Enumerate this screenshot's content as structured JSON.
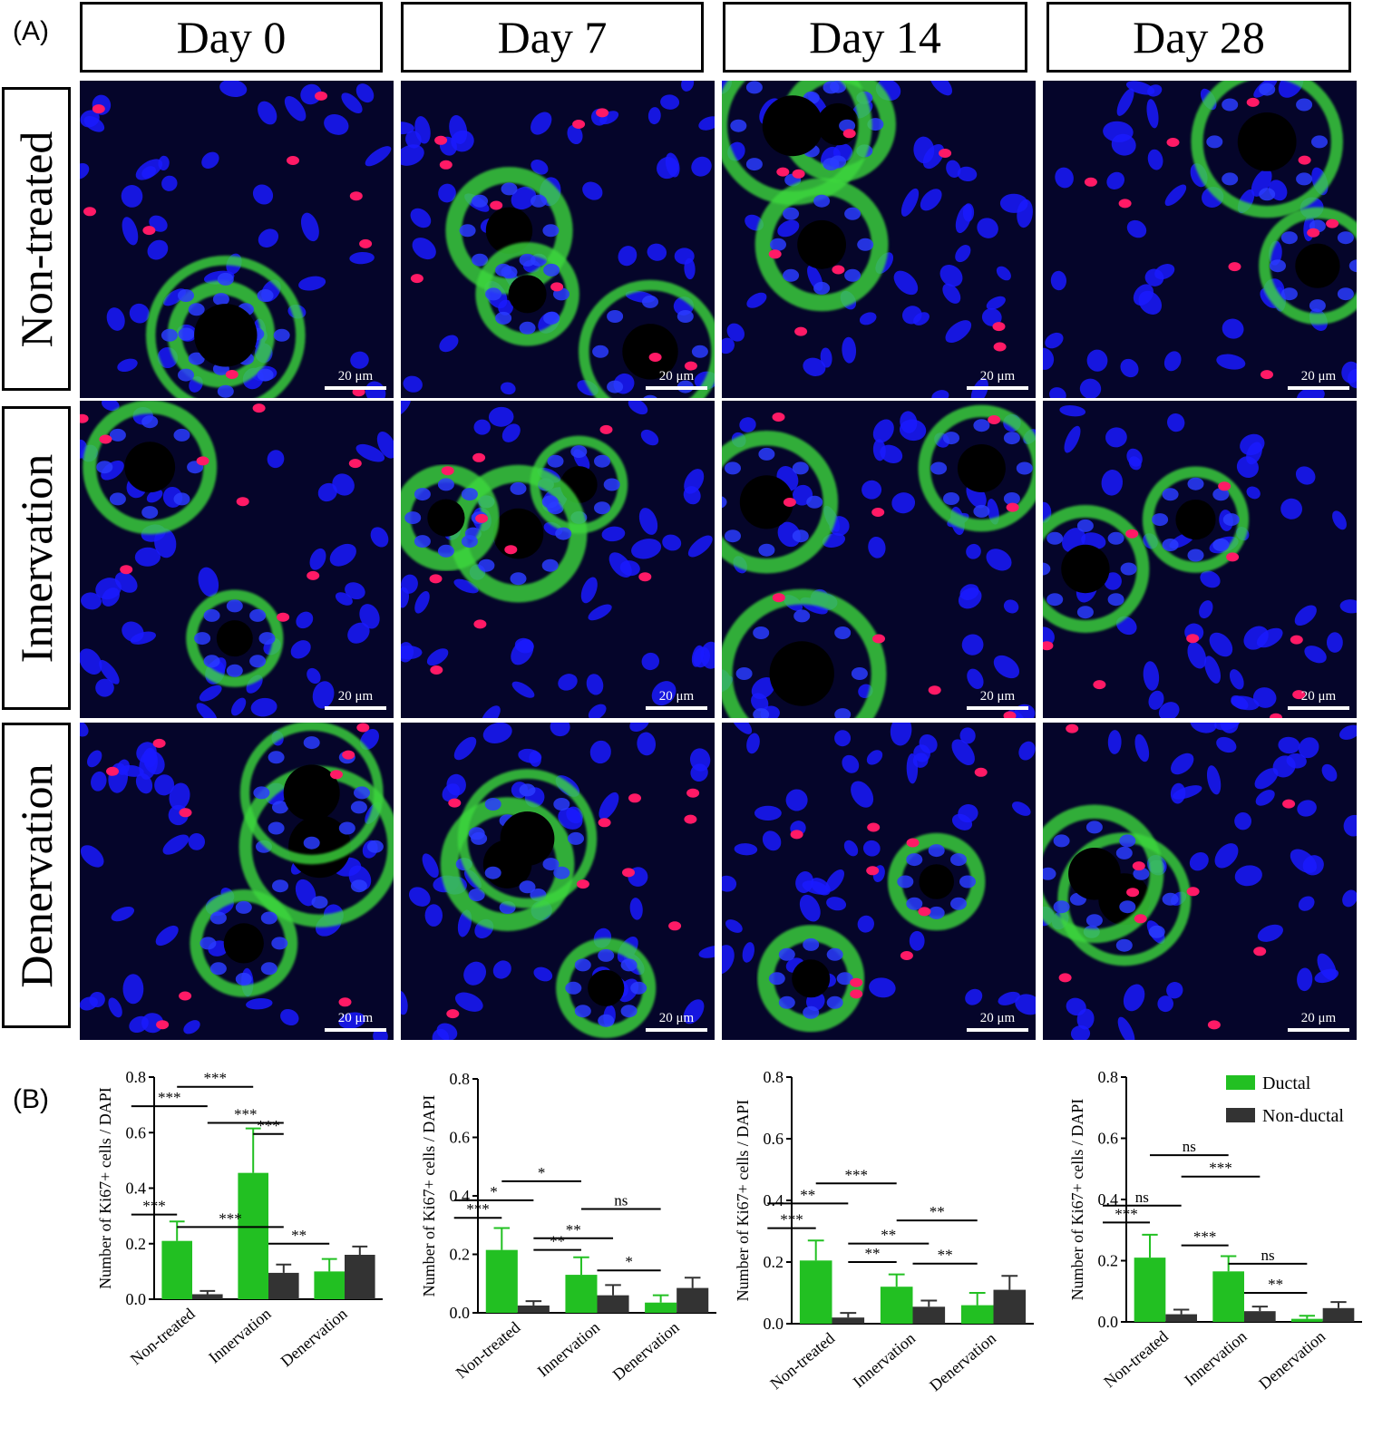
{
  "panels": {
    "a": "(A)",
    "b": "(B)"
  },
  "columns": [
    "Day 0",
    "Day 7",
    "Day 14",
    "Day 28"
  ],
  "rows": [
    "Non-treated",
    "Innervation",
    "Denervation"
  ],
  "scale_bar": "20 μm",
  "colors": {
    "ductal": "#22c022",
    "non_ductal": "#333333",
    "nuclei": "#1a1aff",
    "ki67": "#ff1a66",
    "membrane": "#40dd40"
  },
  "chart_data": [
    {
      "type": "bar",
      "ylabel": "Number of  Ki67+ cells / DAPI",
      "ylim": [
        0,
        0.8
      ],
      "yticks": [
        "0.0",
        "0.2",
        "0.4",
        "0.6",
        "0.8"
      ],
      "categories": [
        "Non-treated",
        "Innervation",
        "Denervation"
      ],
      "series": [
        {
          "name": "Ductal",
          "values": [
            0.21,
            0.455,
            0.1
          ],
          "errors": [
            0.07,
            0.16,
            0.045
          ]
        },
        {
          "name": "Non-ductal",
          "values": [
            0.018,
            0.095,
            0.16
          ],
          "errors": [
            0.012,
            0.03,
            0.03
          ]
        }
      ],
      "brackets": [
        {
          "x1": 0,
          "x2": 1,
          "label": "***",
          "y": 0.765
        },
        {
          "x1": -0.5,
          "x2": 0.5,
          "label": "***",
          "y": 0.695
        },
        {
          "x1": 0.5,
          "x2": 1.5,
          "label": "***",
          "y": 0.635
        },
        {
          "x1": 1,
          "x2": 1.5,
          "label": "***",
          "y": 0.595
        },
        {
          "x1": -0.5,
          "x2": 0,
          "label": "***",
          "y": 0.305
        },
        {
          "x1": 0,
          "x2": 1.5,
          "label": "***",
          "y": 0.26
        },
        {
          "x1": 1.75,
          "x2": 2,
          "label": "**",
          "y": 0.2
        }
      ]
    },
    {
      "type": "bar",
      "ylabel": "Number of  Ki67+ cells / DAPI",
      "ylim": [
        0,
        0.8
      ],
      "yticks": [
        "0.0",
        "0.2",
        "0.4",
        "0.6",
        "0.8"
      ],
      "categories": [
        "Non-treated",
        "Innervation",
        "Denervation"
      ],
      "series": [
        {
          "name": "Ductal",
          "values": [
            0.215,
            0.13,
            0.035
          ],
          "errors": [
            0.075,
            0.06,
            0.025
          ]
        },
        {
          "name": "Non-ductal",
          "values": [
            0.025,
            0.06,
            0.085
          ],
          "errors": [
            0.015,
            0.035,
            0.035
          ]
        }
      ],
      "brackets": [
        {
          "x1": 0,
          "x2": 1,
          "label": "*",
          "y": 0.45
        },
        {
          "x1": -0.5,
          "x2": 0.5,
          "label": "*",
          "y": 0.385
        },
        {
          "x1": -0.5,
          "x2": 0,
          "label": "***",
          "y": 0.325
        },
        {
          "x1": 1,
          "x2": 2,
          "label": "ns",
          "y": 0.355
        },
        {
          "x1": 0.5,
          "x2": 1.5,
          "label": "**",
          "y": 0.255
        },
        {
          "x1": 0.5,
          "x2": 1,
          "label": "**",
          "y": 0.215
        },
        {
          "x1": 1.75,
          "x2": 2,
          "label": "*",
          "y": 0.145
        }
      ]
    },
    {
      "type": "bar",
      "ylabel": "Number of  Ki67+ cells / DAPI",
      "ylim": [
        0,
        0.8
      ],
      "yticks": [
        "0.0",
        "0.2",
        "0.4",
        "0.6",
        "0.8"
      ],
      "categories": [
        "Non-treated",
        "Innervation",
        "Denervation"
      ],
      "series": [
        {
          "name": "Ductal",
          "values": [
            0.205,
            0.12,
            0.06
          ],
          "errors": [
            0.065,
            0.04,
            0.04
          ]
        },
        {
          "name": "Non-ductal",
          "values": [
            0.02,
            0.055,
            0.11
          ],
          "errors": [
            0.015,
            0.02,
            0.045
          ]
        }
      ],
      "brackets": [
        {
          "x1": 0,
          "x2": 1,
          "label": "***",
          "y": 0.455
        },
        {
          "x1": -0.5,
          "x2": 0.5,
          "label": "**",
          "y": 0.39
        },
        {
          "x1": -0.5,
          "x2": 0,
          "label": "***",
          "y": 0.31
        },
        {
          "x1": 1,
          "x2": 2,
          "label": "**",
          "y": 0.335
        },
        {
          "x1": 0.5,
          "x2": 1.5,
          "label": "**",
          "y": 0.26
        },
        {
          "x1": 0.5,
          "x2": 1,
          "label": "**",
          "y": 0.2
        },
        {
          "x1": 1.75,
          "x2": 2,
          "label": "**",
          "y": 0.195
        }
      ]
    },
    {
      "type": "bar",
      "ylabel": "Number of  Ki67+ cells / DAPI",
      "ylim": [
        0,
        0.8
      ],
      "yticks": [
        "0.0",
        "0.2",
        "0.4",
        "0.6",
        "0.8"
      ],
      "categories": [
        "Non-treated",
        "Innervation",
        "Denervation"
      ],
      "legend": [
        {
          "name": "Ductal"
        },
        {
          "name": "Non-ductal"
        }
      ],
      "series": [
        {
          "name": "Ductal",
          "values": [
            0.21,
            0.165,
            0.01
          ],
          "errors": [
            0.075,
            0.05,
            0.01
          ]
        },
        {
          "name": "Non-ductal",
          "values": [
            0.025,
            0.035,
            0.045
          ],
          "errors": [
            0.015,
            0.015,
            0.02
          ]
        }
      ],
      "brackets": [
        {
          "x1": 0,
          "x2": 1,
          "label": "ns",
          "y": 0.545
        },
        {
          "x1": 0.5,
          "x2": 1.5,
          "label": "***",
          "y": 0.475
        },
        {
          "x1": -0.5,
          "x2": 0.5,
          "label": "ns",
          "y": 0.38
        },
        {
          "x1": -0.5,
          "x2": 0,
          "label": "***",
          "y": 0.325
        },
        {
          "x1": 0.5,
          "x2": 1,
          "label": "***",
          "y": 0.25
        },
        {
          "x1": 1,
          "x2": 2,
          "label": "ns",
          "y": 0.19
        },
        {
          "x1": 1.75,
          "x2": 2,
          "label": "**",
          "y": 0.095
        }
      ]
    }
  ]
}
